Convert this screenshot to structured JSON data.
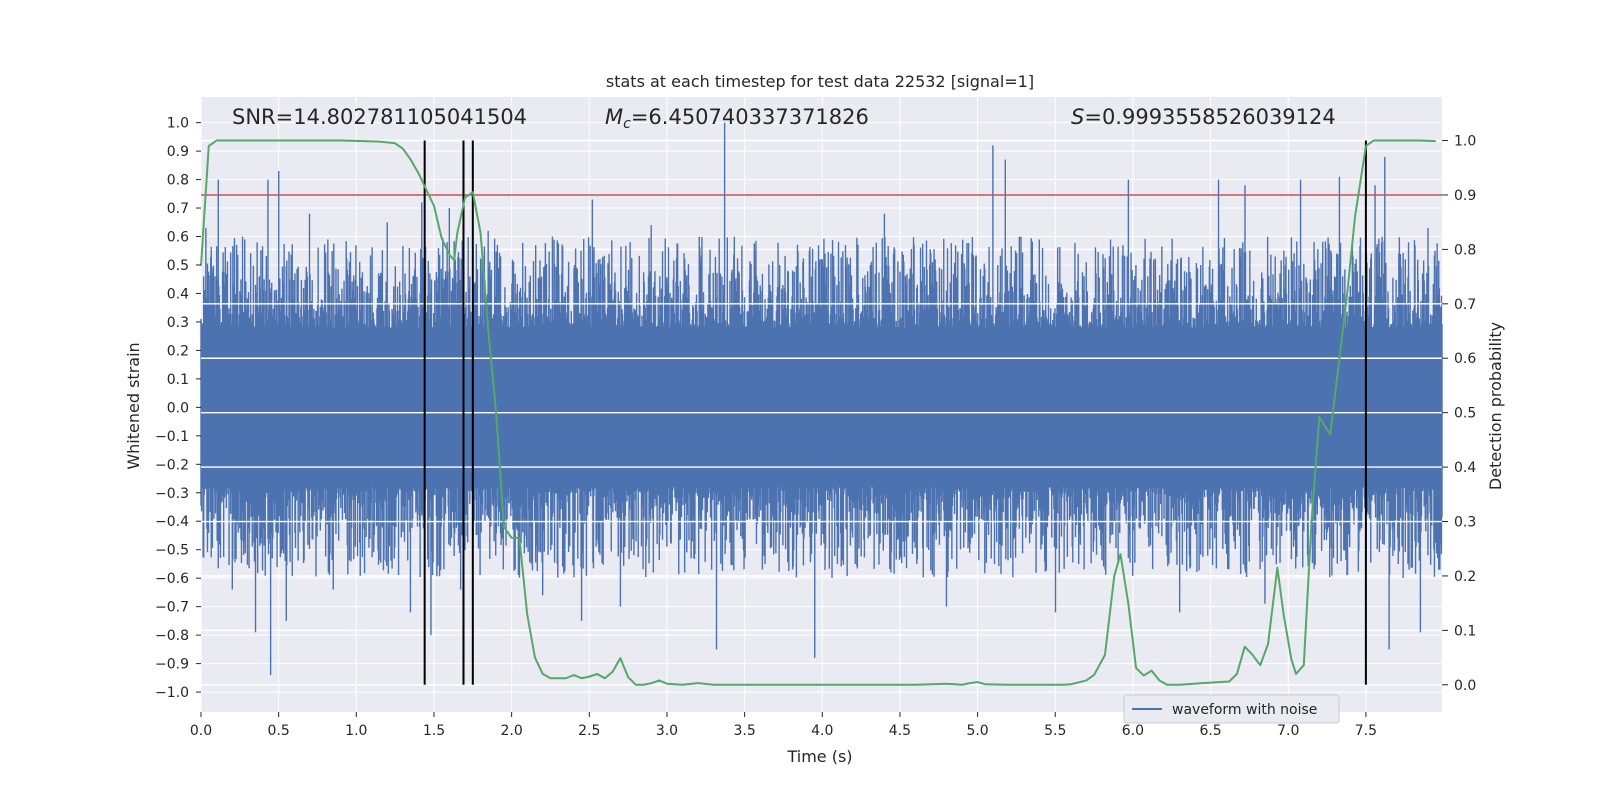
{
  "chart_data": {
    "type": "line",
    "title": "stats at each timestep for test data 22532 [signal=1]",
    "xlabel": "Time (s)",
    "ylabel": "Whitened strain",
    "ylabel_right": "Detection probability",
    "xlim": [
      0.0,
      7.99
    ],
    "ylim": [
      -1.07,
      1.09
    ],
    "ylim_right": [
      -0.05,
      1.08
    ],
    "x_ticks": [
      0.0,
      0.5,
      1.0,
      1.5,
      2.0,
      2.5,
      3.0,
      3.5,
      4.0,
      4.5,
      5.0,
      5.5,
      6.0,
      6.5,
      7.0,
      7.5
    ],
    "x_tick_labels": [
      "0.0",
      "0.5",
      "1.0",
      "1.5",
      "2.0",
      "2.5",
      "3.0",
      "3.5",
      "4.0",
      "4.5",
      "5.0",
      "5.5",
      "6.0",
      "6.5",
      "7.0",
      "7.5"
    ],
    "y_ticks": [
      1.0,
      0.9,
      0.8,
      0.7,
      0.6,
      0.5,
      0.4,
      0.3,
      0.2,
      0.1,
      0.0,
      -0.1,
      -0.2,
      -0.3,
      -0.4,
      -0.5,
      -0.6,
      -0.7,
      -0.8,
      -0.9,
      -1.0
    ],
    "y_tick_labels": [
      "1.0",
      "0.9",
      "0.8",
      "0.7",
      "0.6",
      "0.5",
      "0.4",
      "0.3",
      "0.2",
      "0.1",
      "0.0",
      "−0.1",
      "−0.2",
      "−0.3",
      "−0.4",
      "−0.5",
      "−0.6",
      "−0.7",
      "−0.8",
      "−0.9",
      "−1.0"
    ],
    "y_right_ticks": [
      1.0,
      0.9,
      0.8,
      0.7,
      0.6,
      0.5,
      0.4,
      0.3,
      0.2,
      0.1,
      0.0
    ],
    "y_right_tick_labels": [
      "1.0",
      "0.9",
      "0.8",
      "0.7",
      "0.6",
      "0.5",
      "0.4",
      "0.3",
      "0.2",
      "0.1",
      "0.0"
    ],
    "annotations": {
      "snr": "SNR=14.802781105041504",
      "mc_symbol": "M",
      "mc_subscript": "c",
      "mc_value": "=6.450740337371826",
      "s_symbol": "S",
      "s_value": "=0.9993558526039124"
    },
    "threshold": {
      "value": 0.9,
      "axis": "right",
      "color": "#c44e52"
    },
    "vertical_lines": [
      1.44,
      1.69,
      1.75,
      7.5
    ],
    "legend": {
      "label": "waveform with noise",
      "position": "lower-right"
    },
    "waveform": {
      "name": "waveform with noise",
      "color": "#4c72b0",
      "description": "dense noisy whitened strain, roughly within ±0.45 with spikes",
      "peaks": [
        {
          "x": 0.03,
          "y": 0.63
        },
        {
          "x": 0.11,
          "y": 0.8
        },
        {
          "x": 0.2,
          "y": -0.64
        },
        {
          "x": 0.28,
          "y": 0.59
        },
        {
          "x": 0.35,
          "y": -0.79
        },
        {
          "x": 0.43,
          "y": 0.8
        },
        {
          "x": 0.45,
          "y": -0.94
        },
        {
          "x": 0.5,
          "y": 0.83
        },
        {
          "x": 0.55,
          "y": -0.75
        },
        {
          "x": 0.7,
          "y": 0.68
        },
        {
          "x": 0.85,
          "y": -0.64
        },
        {
          "x": 1.2,
          "y": 0.65
        },
        {
          "x": 1.35,
          "y": -0.72
        },
        {
          "x": 1.42,
          "y": 0.72
        },
        {
          "x": 1.48,
          "y": -0.8
        },
        {
          "x": 1.6,
          "y": 0.7
        },
        {
          "x": 1.67,
          "y": -0.64
        },
        {
          "x": 1.85,
          "y": 0.62
        },
        {
          "x": 2.2,
          "y": -0.66
        },
        {
          "x": 2.45,
          "y": -0.75
        },
        {
          "x": 2.52,
          "y": 0.73
        },
        {
          "x": 2.7,
          "y": -0.7
        },
        {
          "x": 2.9,
          "y": 0.64
        },
        {
          "x": 3.37,
          "y": 1.0
        },
        {
          "x": 3.32,
          "y": -0.85
        },
        {
          "x": 3.95,
          "y": -0.88
        },
        {
          "x": 4.4,
          "y": 0.68
        },
        {
          "x": 4.8,
          "y": -0.7
        },
        {
          "x": 5.1,
          "y": 0.92
        },
        {
          "x": 5.18,
          "y": 0.87
        },
        {
          "x": 5.5,
          "y": -0.72
        },
        {
          "x": 5.97,
          "y": 0.8
        },
        {
          "x": 6.3,
          "y": -0.72
        },
        {
          "x": 6.55,
          "y": 0.8
        },
        {
          "x": 6.72,
          "y": 0.78
        },
        {
          "x": 6.85,
          "y": -0.69
        },
        {
          "x": 7.08,
          "y": 0.8
        },
        {
          "x": 7.33,
          "y": 0.81
        },
        {
          "x": 7.56,
          "y": 0.78
        },
        {
          "x": 7.62,
          "y": 0.88
        },
        {
          "x": 7.65,
          "y": -0.85
        },
        {
          "x": 7.85,
          "y": -0.79
        },
        {
          "x": 7.9,
          "y": 0.63
        }
      ]
    },
    "probability_series": {
      "name": "detection probability",
      "color": "#55a868",
      "points": [
        [
          0.0,
          0.77
        ],
        [
          0.05,
          0.99
        ],
        [
          0.1,
          1.0
        ],
        [
          0.3,
          1.0
        ],
        [
          0.6,
          1.0
        ],
        [
          0.9,
          1.0
        ],
        [
          1.05,
          0.999
        ],
        [
          1.15,
          0.998
        ],
        [
          1.25,
          0.995
        ],
        [
          1.3,
          0.985
        ],
        [
          1.35,
          0.965
        ],
        [
          1.4,
          0.94
        ],
        [
          1.45,
          0.91
        ],
        [
          1.5,
          0.88
        ],
        [
          1.55,
          0.82
        ],
        [
          1.6,
          0.79
        ],
        [
          1.63,
          0.78
        ],
        [
          1.65,
          0.83
        ],
        [
          1.7,
          0.895
        ],
        [
          1.75,
          0.905
        ],
        [
          1.8,
          0.83
        ],
        [
          1.85,
          0.65
        ],
        [
          1.9,
          0.5
        ],
        [
          1.95,
          0.29
        ],
        [
          2.0,
          0.27
        ],
        [
          2.05,
          0.27
        ],
        [
          2.1,
          0.13
        ],
        [
          2.15,
          0.05
        ],
        [
          2.2,
          0.02
        ],
        [
          2.25,
          0.012
        ],
        [
          2.3,
          0.012
        ],
        [
          2.35,
          0.012
        ],
        [
          2.4,
          0.018
        ],
        [
          2.45,
          0.012
        ],
        [
          2.5,
          0.015
        ],
        [
          2.55,
          0.02
        ],
        [
          2.6,
          0.012
        ],
        [
          2.65,
          0.024
        ],
        [
          2.7,
          0.049
        ],
        [
          2.75,
          0.014
        ],
        [
          2.8,
          0.0
        ],
        [
          2.85,
          0.0
        ],
        [
          2.9,
          0.003
        ],
        [
          2.95,
          0.008
        ],
        [
          3.0,
          0.002
        ],
        [
          3.1,
          0.0
        ],
        [
          3.2,
          0.003
        ],
        [
          3.3,
          0.0
        ],
        [
          3.5,
          0.0
        ],
        [
          3.7,
          0.0
        ],
        [
          3.9,
          0.0
        ],
        [
          4.1,
          0.0
        ],
        [
          4.3,
          0.0
        ],
        [
          4.6,
          0.0
        ],
        [
          4.8,
          0.002
        ],
        [
          4.9,
          0.0
        ],
        [
          4.95,
          0.003
        ],
        [
          5.0,
          0.005
        ],
        [
          5.05,
          0.001
        ],
        [
          5.2,
          0.0
        ],
        [
          5.4,
          0.0
        ],
        [
          5.55,
          0.0
        ],
        [
          5.6,
          0.001
        ],
        [
          5.7,
          0.008
        ],
        [
          5.75,
          0.018
        ],
        [
          5.82,
          0.055
        ],
        [
          5.88,
          0.2
        ],
        [
          5.92,
          0.24
        ],
        [
          5.97,
          0.15
        ],
        [
          6.02,
          0.031
        ],
        [
          6.07,
          0.017
        ],
        [
          6.12,
          0.026
        ],
        [
          6.17,
          0.008
        ],
        [
          6.22,
          0.0
        ],
        [
          6.3,
          0.0
        ],
        [
          6.45,
          0.003
        ],
        [
          6.55,
          0.005
        ],
        [
          6.62,
          0.006
        ],
        [
          6.67,
          0.02
        ],
        [
          6.72,
          0.07
        ],
        [
          6.77,
          0.055
        ],
        [
          6.82,
          0.036
        ],
        [
          6.87,
          0.075
        ],
        [
          6.93,
          0.215
        ],
        [
          6.97,
          0.13
        ],
        [
          7.02,
          0.047
        ],
        [
          7.05,
          0.02
        ],
        [
          7.1,
          0.036
        ],
        [
          7.15,
          0.3
        ],
        [
          7.2,
          0.492
        ],
        [
          7.27,
          0.46
        ],
        [
          7.33,
          0.6
        ],
        [
          7.38,
          0.72
        ],
        [
          7.43,
          0.86
        ],
        [
          7.5,
          0.99
        ],
        [
          7.55,
          1.0
        ],
        [
          7.65,
          1.0
        ],
        [
          7.75,
          1.0
        ],
        [
          7.85,
          1.0
        ],
        [
          7.95,
          0.999
        ]
      ]
    }
  }
}
